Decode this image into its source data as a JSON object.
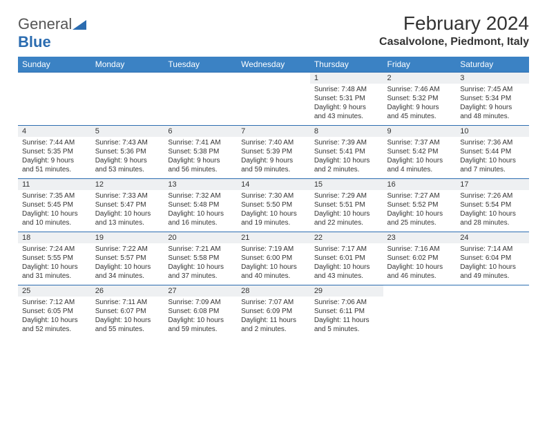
{
  "logo": {
    "text1": "General",
    "text2": "Blue"
  },
  "title": "February 2024",
  "location": "Casalvolone, Piedmont, Italy",
  "colors": {
    "header_bg": "#3b82c4",
    "header_text": "#ffffff",
    "border": "#2b6cb0",
    "daynum_bg": "#eef0f2",
    "text": "#333333",
    "logo_gray": "#555555",
    "logo_blue": "#2b6cb0"
  },
  "day_names": [
    "Sunday",
    "Monday",
    "Tuesday",
    "Wednesday",
    "Thursday",
    "Friday",
    "Saturday"
  ],
  "weeks": [
    {
      "nums": [
        "",
        "",
        "",
        "",
        "1",
        "2",
        "3"
      ],
      "info": [
        [],
        [],
        [],
        [],
        [
          "Sunrise: 7:48 AM",
          "Sunset: 5:31 PM",
          "Daylight: 9 hours",
          "and 43 minutes."
        ],
        [
          "Sunrise: 7:46 AM",
          "Sunset: 5:32 PM",
          "Daylight: 9 hours",
          "and 45 minutes."
        ],
        [
          "Sunrise: 7:45 AM",
          "Sunset: 5:34 PM",
          "Daylight: 9 hours",
          "and 48 minutes."
        ]
      ]
    },
    {
      "nums": [
        "4",
        "5",
        "6",
        "7",
        "8",
        "9",
        "10"
      ],
      "info": [
        [
          "Sunrise: 7:44 AM",
          "Sunset: 5:35 PM",
          "Daylight: 9 hours",
          "and 51 minutes."
        ],
        [
          "Sunrise: 7:43 AM",
          "Sunset: 5:36 PM",
          "Daylight: 9 hours",
          "and 53 minutes."
        ],
        [
          "Sunrise: 7:41 AM",
          "Sunset: 5:38 PM",
          "Daylight: 9 hours",
          "and 56 minutes."
        ],
        [
          "Sunrise: 7:40 AM",
          "Sunset: 5:39 PM",
          "Daylight: 9 hours",
          "and 59 minutes."
        ],
        [
          "Sunrise: 7:39 AM",
          "Sunset: 5:41 PM",
          "Daylight: 10 hours",
          "and 2 minutes."
        ],
        [
          "Sunrise: 7:37 AM",
          "Sunset: 5:42 PM",
          "Daylight: 10 hours",
          "and 4 minutes."
        ],
        [
          "Sunrise: 7:36 AM",
          "Sunset: 5:44 PM",
          "Daylight: 10 hours",
          "and 7 minutes."
        ]
      ]
    },
    {
      "nums": [
        "11",
        "12",
        "13",
        "14",
        "15",
        "16",
        "17"
      ],
      "info": [
        [
          "Sunrise: 7:35 AM",
          "Sunset: 5:45 PM",
          "Daylight: 10 hours",
          "and 10 minutes."
        ],
        [
          "Sunrise: 7:33 AM",
          "Sunset: 5:47 PM",
          "Daylight: 10 hours",
          "and 13 minutes."
        ],
        [
          "Sunrise: 7:32 AM",
          "Sunset: 5:48 PM",
          "Daylight: 10 hours",
          "and 16 minutes."
        ],
        [
          "Sunrise: 7:30 AM",
          "Sunset: 5:50 PM",
          "Daylight: 10 hours",
          "and 19 minutes."
        ],
        [
          "Sunrise: 7:29 AM",
          "Sunset: 5:51 PM",
          "Daylight: 10 hours",
          "and 22 minutes."
        ],
        [
          "Sunrise: 7:27 AM",
          "Sunset: 5:52 PM",
          "Daylight: 10 hours",
          "and 25 minutes."
        ],
        [
          "Sunrise: 7:26 AM",
          "Sunset: 5:54 PM",
          "Daylight: 10 hours",
          "and 28 minutes."
        ]
      ]
    },
    {
      "nums": [
        "18",
        "19",
        "20",
        "21",
        "22",
        "23",
        "24"
      ],
      "info": [
        [
          "Sunrise: 7:24 AM",
          "Sunset: 5:55 PM",
          "Daylight: 10 hours",
          "and 31 minutes."
        ],
        [
          "Sunrise: 7:22 AM",
          "Sunset: 5:57 PM",
          "Daylight: 10 hours",
          "and 34 minutes."
        ],
        [
          "Sunrise: 7:21 AM",
          "Sunset: 5:58 PM",
          "Daylight: 10 hours",
          "and 37 minutes."
        ],
        [
          "Sunrise: 7:19 AM",
          "Sunset: 6:00 PM",
          "Daylight: 10 hours",
          "and 40 minutes."
        ],
        [
          "Sunrise: 7:17 AM",
          "Sunset: 6:01 PM",
          "Daylight: 10 hours",
          "and 43 minutes."
        ],
        [
          "Sunrise: 7:16 AM",
          "Sunset: 6:02 PM",
          "Daylight: 10 hours",
          "and 46 minutes."
        ],
        [
          "Sunrise: 7:14 AM",
          "Sunset: 6:04 PM",
          "Daylight: 10 hours",
          "and 49 minutes."
        ]
      ]
    },
    {
      "nums": [
        "25",
        "26",
        "27",
        "28",
        "29",
        "",
        ""
      ],
      "info": [
        [
          "Sunrise: 7:12 AM",
          "Sunset: 6:05 PM",
          "Daylight: 10 hours",
          "and 52 minutes."
        ],
        [
          "Sunrise: 7:11 AM",
          "Sunset: 6:07 PM",
          "Daylight: 10 hours",
          "and 55 minutes."
        ],
        [
          "Sunrise: 7:09 AM",
          "Sunset: 6:08 PM",
          "Daylight: 10 hours",
          "and 59 minutes."
        ],
        [
          "Sunrise: 7:07 AM",
          "Sunset: 6:09 PM",
          "Daylight: 11 hours",
          "and 2 minutes."
        ],
        [
          "Sunrise: 7:06 AM",
          "Sunset: 6:11 PM",
          "Daylight: 11 hours",
          "and 5 minutes."
        ],
        [],
        []
      ]
    }
  ]
}
